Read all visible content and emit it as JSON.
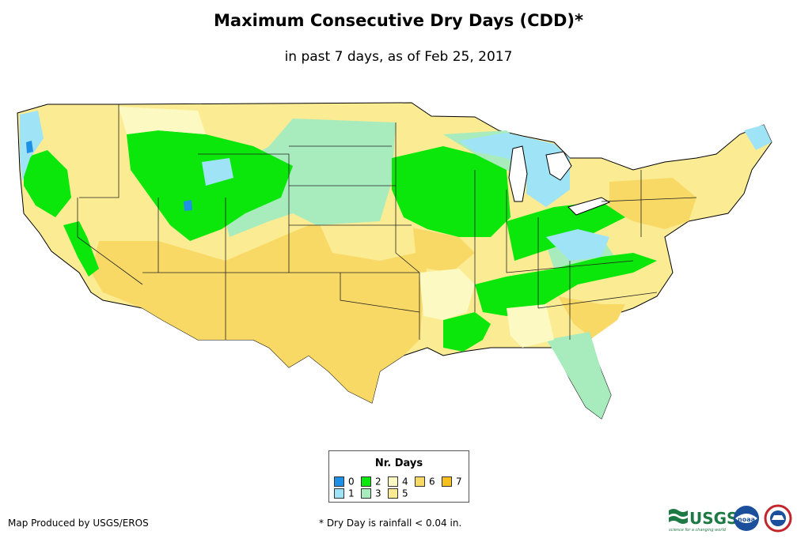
{
  "header": {
    "title": "Maximum Consecutive Dry Days (CDD)*",
    "subtitle": "in past 7 days, as of Feb 25, 2017"
  },
  "legend": {
    "title": "Nr. Days",
    "items": [
      {
        "label": "0",
        "color": "#1e90e6"
      },
      {
        "label": "1",
        "color": "#9fe3f7"
      },
      {
        "label": "2",
        "color": "#0be60b"
      },
      {
        "label": "3",
        "color": "#a8ecbe"
      },
      {
        "label": "4",
        "color": "#fcfac2"
      },
      {
        "label": "5",
        "color": "#fbec93"
      },
      {
        "label": "6",
        "color": "#f9d965"
      },
      {
        "label": "7",
        "color": "#f7c020"
      }
    ]
  },
  "footer": {
    "credit": "Map Produced by USGS/EROS",
    "footnote": "* Dry Day is rainfall < 0.04 in."
  },
  "logos": {
    "usgs_text": "USGS",
    "usgs_tagline": "science for a changing world",
    "noaa_text": "noaa"
  }
}
